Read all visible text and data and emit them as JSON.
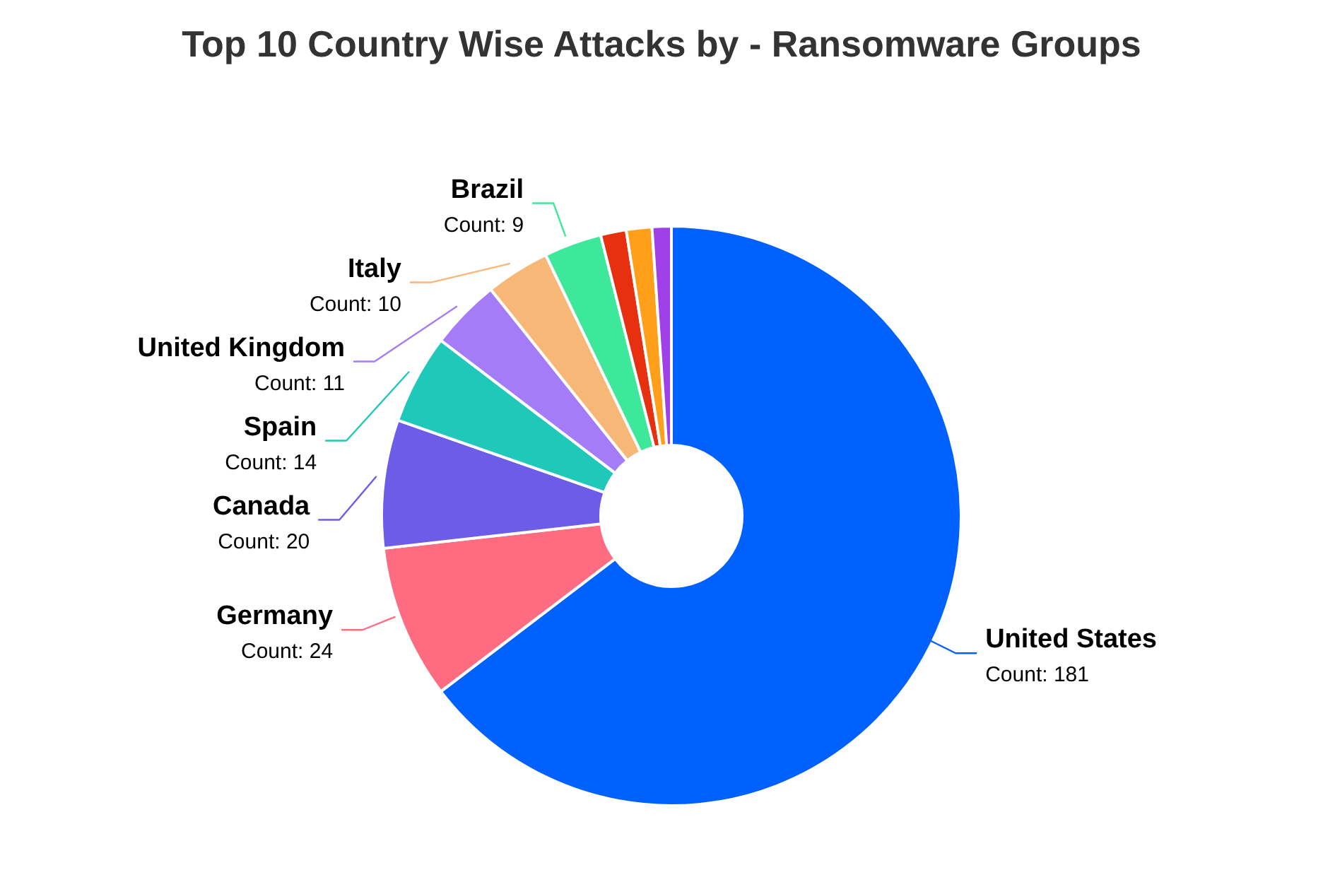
{
  "chart_data": {
    "type": "donut",
    "title": "Top 10 Country Wise Attacks by - Ransomware Groups",
    "categories": [
      "United States",
      "Germany",
      "Canada",
      "Spain",
      "United Kingdom",
      "Italy",
      "Brazil",
      null,
      null,
      null
    ],
    "values": [
      181,
      24,
      20,
      14,
      11,
      10,
      9,
      4,
      4,
      3
    ],
    "colors": [
      "#0061fe",
      "#ff6b81",
      "#6c5ce7",
      "#1fc8b8",
      "#a57cf7",
      "#f7b877",
      "#3ee89a",
      "#e63010",
      "#ff9f1a",
      "#a040e8"
    ],
    "value_labels": [
      "Count: 181",
      "Count: 24",
      "Count: 20",
      "Count: 14",
      "Count: 11",
      "Count: 10",
      "Count: 9",
      null,
      null,
      null
    ],
    "legend": false
  }
}
